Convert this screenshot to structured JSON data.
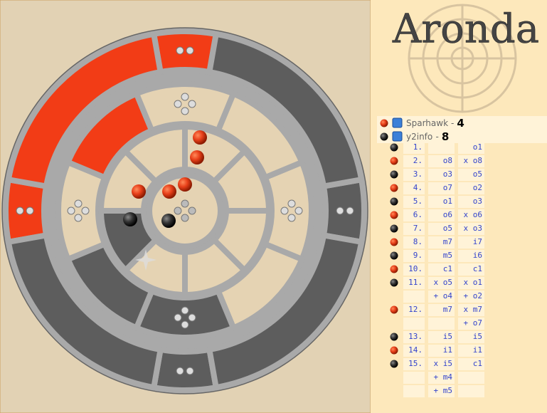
{
  "header": {
    "title": "Aronda"
  },
  "players": [
    {
      "piece": "red",
      "name": "Sparhawk",
      "separator": "-",
      "score": "4"
    },
    {
      "piece": "black",
      "name": "y2info",
      "separator": "-",
      "score": "8"
    }
  ],
  "moves": [
    {
      "piece": "black",
      "number": "1.",
      "b": "o1"
    },
    {
      "piece": "red",
      "number": "2.",
      "a": "o8",
      "b": "x o8"
    },
    {
      "piece": "black",
      "number": "3.",
      "a": "o3",
      "b": "o5"
    },
    {
      "piece": "red",
      "number": "4.",
      "a": "o7",
      "b": "o2"
    },
    {
      "piece": "black",
      "number": "5.",
      "a": "o1",
      "b": "o3"
    },
    {
      "piece": "red",
      "number": "6.",
      "a": "o6",
      "b": "x o6"
    },
    {
      "piece": "black",
      "number": "7.",
      "a": "o5",
      "b": "x o3"
    },
    {
      "piece": "red",
      "number": "8.",
      "a": "m7",
      "b": "i7"
    },
    {
      "piece": "black",
      "number": "9.",
      "a": "m5",
      "b": "i6"
    },
    {
      "piece": "red",
      "number": "10.",
      "a": "c1",
      "b": "c1"
    },
    {
      "piece": "black",
      "number": "11.",
      "a": "x o5",
      "b": "x o1"
    },
    {
      "a": "+ o4",
      "b": "+ o2"
    },
    {
      "piece": "red",
      "number": "12.",
      "a": "m7",
      "b": "x m7"
    },
    {
      "b": "+ o7"
    },
    {
      "piece": "black",
      "number": "13.",
      "a": "i5",
      "b": "i5"
    },
    {
      "piece": "red",
      "number": "14.",
      "a": "i1",
      "b": "i1"
    },
    {
      "piece": "black",
      "number": "15.",
      "a": "x i5",
      "b": "c1"
    },
    {
      "a": "+ m4"
    },
    {
      "a": "+ m5"
    }
  ]
}
